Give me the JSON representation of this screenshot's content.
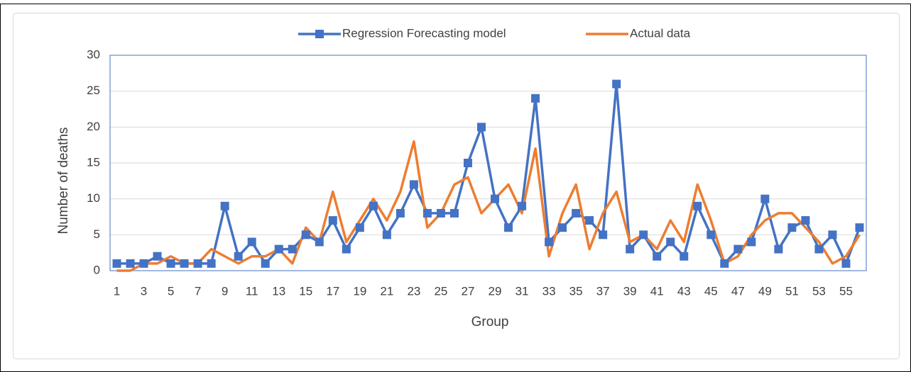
{
  "chart_data": {
    "type": "line",
    "categories": [
      "1",
      null,
      "3",
      null,
      "5",
      null,
      "7",
      null,
      "9",
      null,
      "11",
      null,
      "13",
      null,
      "15",
      null,
      "17",
      null,
      "19",
      null,
      "21",
      null,
      "23",
      null,
      "25",
      null,
      "27",
      null,
      "29",
      null,
      "31",
      null,
      "33",
      null,
      "35",
      null,
      "37",
      null,
      "39",
      null,
      "41",
      null,
      "43",
      null,
      "45",
      null,
      "47",
      null,
      "49",
      null,
      "51",
      null,
      "53",
      null,
      "55",
      null
    ],
    "series": [
      {
        "name": "Regression Forecasting model",
        "color": "#4472c4",
        "marker": "square",
        "values": [
          1,
          1,
          1,
          2,
          1,
          1,
          1,
          1,
          9,
          2,
          4,
          1,
          3,
          3,
          5,
          4,
          7,
          3,
          6,
          9,
          5,
          8,
          12,
          8,
          8,
          8,
          15,
          20,
          10,
          6,
          9,
          24,
          4,
          6,
          8,
          7,
          5,
          26,
          3,
          5,
          2,
          4,
          2,
          9,
          5,
          1,
          3,
          4,
          10,
          3,
          6,
          7,
          3,
          5,
          1,
          6
        ]
      },
      {
        "name": "Actual data",
        "color": "#ed7d31",
        "values": [
          0,
          0,
          1,
          1,
          2,
          1,
          1,
          3,
          2,
          1,
          2,
          2,
          3,
          1,
          6,
          4,
          11,
          4,
          7,
          10,
          7,
          11,
          18,
          6,
          8,
          12,
          13,
          8,
          10,
          12,
          8,
          17,
          2,
          8,
          12,
          3,
          8,
          11,
          4,
          5,
          3,
          7,
          4,
          12,
          7,
          1,
          2,
          5,
          7,
          8,
          8,
          6,
          4,
          1,
          2,
          5
        ]
      }
    ],
    "x_label": "Group",
    "y_label": "Number of deaths",
    "ylim": [
      0,
      30
    ],
    "yticks": [
      0,
      5,
      10,
      15,
      20,
      25,
      30
    ],
    "grid": true,
    "legend": "top"
  }
}
